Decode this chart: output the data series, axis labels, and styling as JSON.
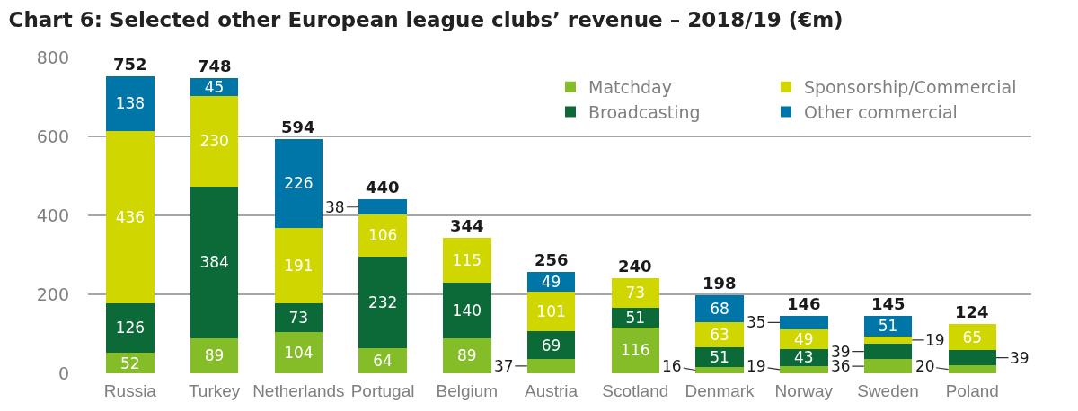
{
  "chart_data": {
    "type": "bar",
    "title": "Chart 6: Selected other European league clubs’ revenue – 2018/19 (€m)",
    "categories": [
      "Russia",
      "Turkey",
      "Netherlands",
      "Portugal",
      "Belgium",
      "Austria",
      "Scotland",
      "Denmark",
      "Norway",
      "Sweden",
      "Poland"
    ],
    "stacked": true,
    "series": [
      {
        "name": "Matchday",
        "color": "#84bd28",
        "values": [
          52,
          89,
          104,
          64,
          89,
          37,
          116,
          16,
          19,
          36,
          20
        ]
      },
      {
        "name": "Broadcasting",
        "color": "#0b6a37",
        "values": [
          126,
          384,
          73,
          232,
          140,
          69,
          51,
          51,
          43,
          39,
          39
        ]
      },
      {
        "name": "Sponsorship/Commercial",
        "color": "#cfd600",
        "values": [
          436,
          230,
          191,
          106,
          115,
          101,
          73,
          63,
          49,
          19,
          65
        ]
      },
      {
        "name": "Other commercial",
        "color": "#0076a8",
        "values": [
          138,
          45,
          226,
          38,
          null,
          49,
          null,
          68,
          35,
          51,
          null
        ]
      }
    ],
    "totals": [
      "752",
      "748",
      "594",
      "440",
      "344",
      "256",
      "240",
      "198",
      "146",
      "145",
      "124"
    ],
    "data_labels": true,
    "ylim": [
      0,
      800
    ],
    "yticks": [
      0,
      200,
      400,
      600,
      800
    ],
    "grid": "y",
    "legend": "top right"
  }
}
